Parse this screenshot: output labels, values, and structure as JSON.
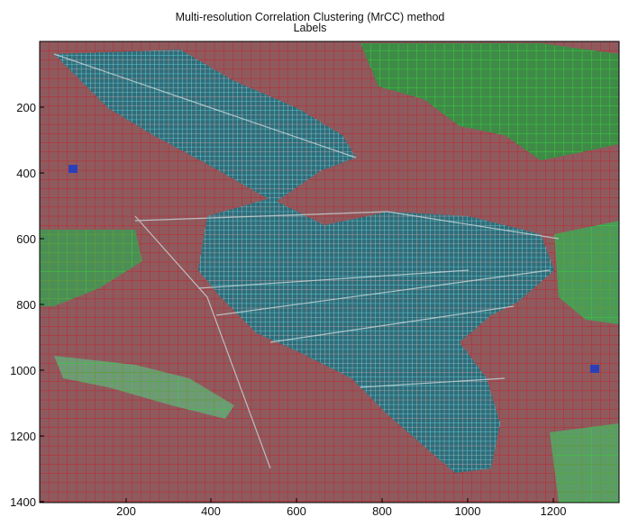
{
  "figure": {
    "title": "Multi-resolution Correlation Clustering (MrCC) method",
    "subtitle": "Labels"
  },
  "axes": {
    "x_ticks": [
      "200",
      "400",
      "600",
      "800",
      "1000",
      "1200"
    ],
    "y_ticks": [
      "200",
      "400",
      "600",
      "800",
      "1000",
      "1200",
      "1400"
    ],
    "x_range": [
      1,
      1350
    ],
    "y_range": [
      1,
      1400
    ],
    "y_direction": "reversed"
  },
  "image_content": "satellite image overlaid with a regular grid of cluster cells (red, green, cyan, blue)",
  "label_colors": {
    "red": "#c0252b",
    "green": "#35d13c",
    "cyan": "#5fe0e8",
    "blue": "#2c3fb8"
  }
}
